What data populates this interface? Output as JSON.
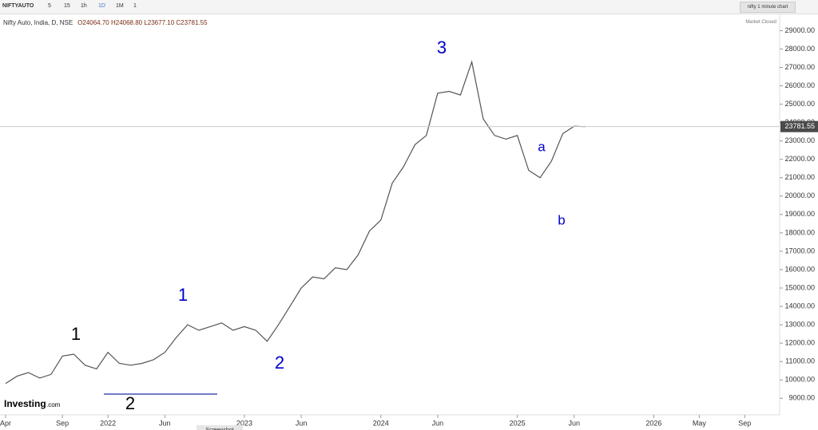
{
  "toolbar": {
    "symbol": "NIFTYAUTO",
    "intervals": [
      "5",
      "15",
      "1h",
      "1D",
      "1M",
      "1"
    ],
    "chart_name": "nifty 1 minute chart"
  },
  "header": {
    "instrument": "Nifty Auto, India, D, NSE",
    "ohlc": "O24064.70 H24068.80 L23677.10 C23781.55",
    "status": "Market Closed"
  },
  "logo": "Investing",
  "logo_suffix": ".com",
  "footer": "Screenshot",
  "chart_data": {
    "type": "line",
    "color": "#555555",
    "x": [
      "2021-04",
      "2021-05",
      "2021-06",
      "2021-07",
      "2021-08",
      "2021-09",
      "2021-10",
      "2021-11",
      "2021-12",
      "2022-01",
      "2022-02",
      "2022-03",
      "2022-04",
      "2022-05",
      "2022-06",
      "2022-07",
      "2022-08",
      "2022-09",
      "2022-10",
      "2022-11",
      "2022-12",
      "2023-01",
      "2023-02",
      "2023-03",
      "2023-04",
      "2023-05",
      "2023-06",
      "2023-07",
      "2023-08",
      "2023-09",
      "2023-10",
      "2023-11",
      "2023-12",
      "2024-01",
      "2024-02",
      "2024-03",
      "2024-04",
      "2024-05",
      "2024-06",
      "2024-07",
      "2024-08",
      "2024-09",
      "2024-10",
      "2024-11",
      "2024-12",
      "2025-01",
      "2025-02",
      "2025-03",
      "2025-04",
      "2025-05",
      "2025-06",
      "2025-07"
    ],
    "values": [
      9800,
      10200,
      10400,
      10100,
      10300,
      11300,
      11400,
      10800,
      10600,
      11500,
      10900,
      10800,
      10900,
      11100,
      11500,
      12300,
      13000,
      12700,
      12900,
      13100,
      12700,
      12900,
      12700,
      12100,
      13000,
      14000,
      15000,
      15600,
      15500,
      16100,
      16000,
      16800,
      18100,
      18700,
      20700,
      21600,
      22800,
      23300,
      25600,
      25700,
      25500,
      27300,
      24200,
      23300,
      23100,
      23300,
      21400,
      21000,
      21900,
      23400,
      23800,
      23781.55
    ],
    "last_price": 23781.55,
    "xlim": [
      "2021-04",
      "2026-12"
    ],
    "xticks": [
      {
        "value": "2021-04",
        "label": "Apr"
      },
      {
        "value": "2021-09",
        "label": "Sep"
      },
      {
        "value": "2022-01",
        "label": "2022"
      },
      {
        "value": "2022-06",
        "label": "Jun"
      },
      {
        "value": "2023-01",
        "label": "2023"
      },
      {
        "value": "2023-06",
        "label": "Jun"
      },
      {
        "value": "2024-01",
        "label": "2024"
      },
      {
        "value": "2024-06",
        "label": "Jun"
      },
      {
        "value": "2025-01",
        "label": "2025"
      },
      {
        "value": "2025-06",
        "label": "Jun"
      },
      {
        "value": "2026-01",
        "label": "2026"
      },
      {
        "value": "2026-05",
        "label": "May"
      },
      {
        "value": "2026-09",
        "label": "Sep"
      }
    ],
    "ylim": [
      8100,
      29800
    ],
    "yticks": [
      {
        "value": 9000,
        "label": "9000.00"
      },
      {
        "value": 10000,
        "label": "10000.00"
      },
      {
        "value": 11000,
        "label": "11000.00"
      },
      {
        "value": 12000,
        "label": "12000.00"
      },
      {
        "value": 13000,
        "label": "13000.00"
      },
      {
        "value": 14000,
        "label": "14000.00"
      },
      {
        "value": 15000,
        "label": "15000.00"
      },
      {
        "value": 16000,
        "label": "16000.00"
      },
      {
        "value": 17000,
        "label": "17000.00"
      },
      {
        "value": 18000,
        "label": "18000.00"
      },
      {
        "value": 19000,
        "label": "19000.00"
      },
      {
        "value": 20000,
        "label": "20000.00"
      },
      {
        "value": 21000,
        "label": "21000.00"
      },
      {
        "value": 22000,
        "label": "22000.00"
      },
      {
        "value": 23000,
        "label": "23000.00"
      },
      {
        "value": 24000,
        "label": "24000.00"
      },
      {
        "value": 25000,
        "label": "25000.00"
      },
      {
        "value": 26000,
        "label": "26000.00"
      },
      {
        "value": 27000,
        "label": "27000.00"
      },
      {
        "value": 28000,
        "label": "28000.00"
      },
      {
        "value": 29000,
        "label": "29000.00"
      }
    ],
    "annotations": [
      "1",
      "2",
      "1",
      "2",
      "3",
      "a",
      "b"
    ]
  }
}
